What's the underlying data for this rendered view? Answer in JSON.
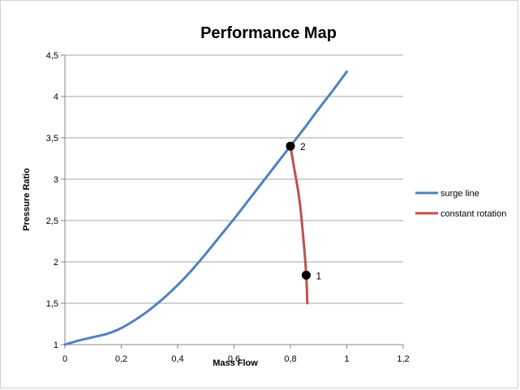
{
  "chart_data": {
    "type": "line",
    "title": "Performance Map",
    "xlabel": "Mass Flow",
    "ylabel": "Pressure Ratio",
    "xlim": [
      0,
      1.2
    ],
    "ylim": [
      1,
      4.5
    ],
    "x_ticks": [
      "0",
      "0,2",
      "0,4",
      "0,6",
      "0,8",
      "1",
      "1,2"
    ],
    "x_tick_values": [
      0,
      0.2,
      0.4,
      0.6,
      0.8,
      1.0,
      1.2
    ],
    "y_ticks": [
      "1",
      "1,5",
      "2",
      "2,5",
      "3",
      "3,5",
      "4",
      "4,5"
    ],
    "y_tick_values": [
      1,
      1.5,
      2,
      2.5,
      3,
      3.5,
      4,
      4.5
    ],
    "grid": "horizontal",
    "legend_position": "right",
    "series": [
      {
        "name": "surge line",
        "color": "#4F81BD",
        "x": [
          0,
          0.05,
          0.1,
          0.15,
          0.2,
          0.25,
          0.3,
          0.35,
          0.4,
          0.45,
          0.5,
          0.55,
          0.6,
          0.65,
          0.7,
          0.75,
          0.8,
          0.85,
          0.9,
          0.95,
          1.0
        ],
        "y": [
          1.0,
          1.05,
          1.09,
          1.13,
          1.2,
          1.3,
          1.42,
          1.56,
          1.72,
          1.9,
          2.1,
          2.31,
          2.52,
          2.74,
          2.96,
          3.18,
          3.4,
          3.62,
          3.85,
          4.07,
          4.3
        ]
      },
      {
        "name": "constant rotation",
        "color": "#C0504D",
        "x": [
          0.8,
          0.815,
          0.83,
          0.84,
          0.848,
          0.853,
          0.856,
          0.858,
          0.86
        ],
        "y": [
          3.4,
          3.1,
          2.8,
          2.5,
          2.2,
          2.0,
          1.84,
          1.7,
          1.5
        ]
      }
    ],
    "annotations": [
      {
        "label": "2",
        "x": 0.8,
        "y": 3.4
      },
      {
        "label": "1",
        "x": 0.856,
        "y": 1.84
      }
    ]
  }
}
